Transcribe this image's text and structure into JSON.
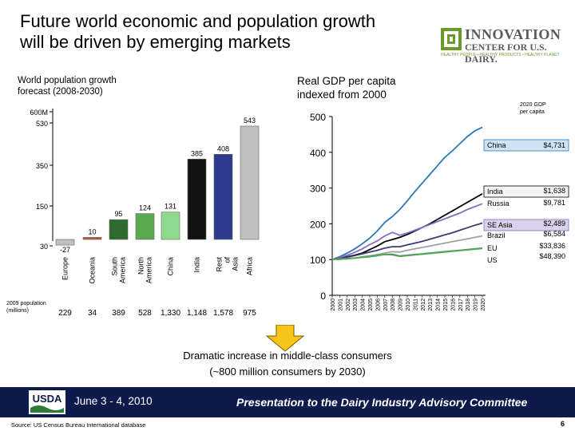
{
  "slide": {
    "title_line1": "Future world economic and population growth",
    "title_line2": "will be driven by emerging markets",
    "summary_line1": "Dramatic increase in middle-class consumers",
    "summary_line2": "(~800 million consumers by 2030)",
    "footer": {
      "date": "June 3 - 4, 2010",
      "presenter": "Presentation to the Dairy Industry Advisory Committee",
      "source": "Source: US Census Bureau International database",
      "page": "6"
    },
    "logo": {
      "word1": "INNOVATION",
      "word2": "CENTER FOR U.S. DAIRY.",
      "tag": "HEALTHY PEOPLE • HEALTHY PRODUCTS • HEALTHY PLANET",
      "usda": "USDA"
    }
  },
  "chart_data": [
    {
      "type": "bar",
      "title_line1": "World population growth",
      "title_line2": "forecast (2008-2030)",
      "y_ticks": [
        "600M",
        "530",
        "350",
        "150",
        "30"
      ],
      "ylim": [
        -30,
        600
      ],
      "categories": [
        "Europe",
        "Oceania",
        "South America",
        "North America",
        "China",
        "India",
        "Rest of Asia",
        "Africa"
      ],
      "values": [
        -27,
        10,
        95,
        124,
        131,
        385,
        408,
        543
      ],
      "colors": [
        "#bfbfbf",
        "#b85a3c",
        "#2f6a2f",
        "#5aa850",
        "#8fd98f",
        "#111111",
        "#2e3b8c",
        "#bfbfbf"
      ],
      "legend_line1": "2009 population",
      "legend_line2": "(millions)",
      "population_2009": [
        "229",
        "34",
        "389",
        "528",
        "1,330",
        "1,148",
        "1,578",
        "975"
      ]
    },
    {
      "type": "line",
      "title_line1": "Real GDP per capita",
      "title_line2": "indexed from 2000",
      "note_line1": "2020 GDP",
      "note_line2": "per capita",
      "y_ticks": [
        0,
        100,
        200,
        300,
        400,
        500
      ],
      "ylim": [
        0,
        500
      ],
      "x": [
        "2000",
        "2001",
        "2002",
        "2003",
        "2004",
        "2005",
        "2006",
        "2007",
        "2008",
        "2009",
        "2010",
        "2011",
        "2012",
        "2013",
        "2014",
        "2015",
        "2016",
        "2017",
        "2018",
        "2019",
        "2020"
      ],
      "series": [
        {
          "name": "China",
          "value_2020": "$4,731",
          "color": "#2a7ab8",
          "values": [
            100,
            108,
            118,
            130,
            144,
            160,
            180,
            204,
            220,
            240,
            264,
            290,
            314,
            338,
            362,
            386,
            404,
            424,
            444,
            460,
            470
          ]
        },
        {
          "name": "India",
          "value_2020": "$1,638",
          "color": "#000000",
          "values": [
            100,
            103,
            108,
            112,
            118,
            128,
            138,
            150,
            156,
            162,
            170,
            180,
            190,
            200,
            212,
            224,
            236,
            248,
            260,
            272,
            284
          ]
        },
        {
          "name": "Russia",
          "value_2020": "$9,781",
          "color": "#8c6ac0",
          "values": [
            100,
            106,
            112,
            120,
            130,
            142,
            152,
            166,
            176,
            168,
            174,
            182,
            190,
            198,
            206,
            214,
            222,
            230,
            240,
            248,
            256
          ]
        },
        {
          "name": "SE Asia",
          "value_2020": "$2,489",
          "color": "#3a3a7a",
          "values": [
            100,
            103,
            107,
            111,
            116,
            121,
            126,
            132,
            136,
            136,
            141,
            146,
            151,
            157,
            163,
            169,
            175,
            182,
            189,
            196,
            202
          ]
        },
        {
          "name": "Brazil",
          "value_2020": "$6,584",
          "color": "#a0a0a0",
          "values": [
            100,
            101,
            103,
            104,
            108,
            110,
            114,
            118,
            122,
            121,
            126,
            130,
            134,
            138,
            142,
            146,
            150,
            154,
            158,
            162,
            166
          ]
        },
        {
          "name": "EU",
          "value_2020": "$33,836",
          "color": "#2e8a8a",
          "values": [
            100,
            102,
            103,
            104,
            106,
            108,
            111,
            114,
            115,
            110,
            112,
            114,
            116,
            118,
            120,
            122,
            124,
            126,
            128,
            130,
            132
          ]
        },
        {
          "name": "US",
          "value_2020": "$48,390",
          "color": "#5aa850",
          "values": [
            100,
            101,
            102,
            104,
            107,
            110,
            112,
            114,
            113,
            109,
            111,
            113,
            115,
            117,
            119,
            121,
            123,
            125,
            127,
            129,
            131
          ]
        }
      ]
    }
  ]
}
